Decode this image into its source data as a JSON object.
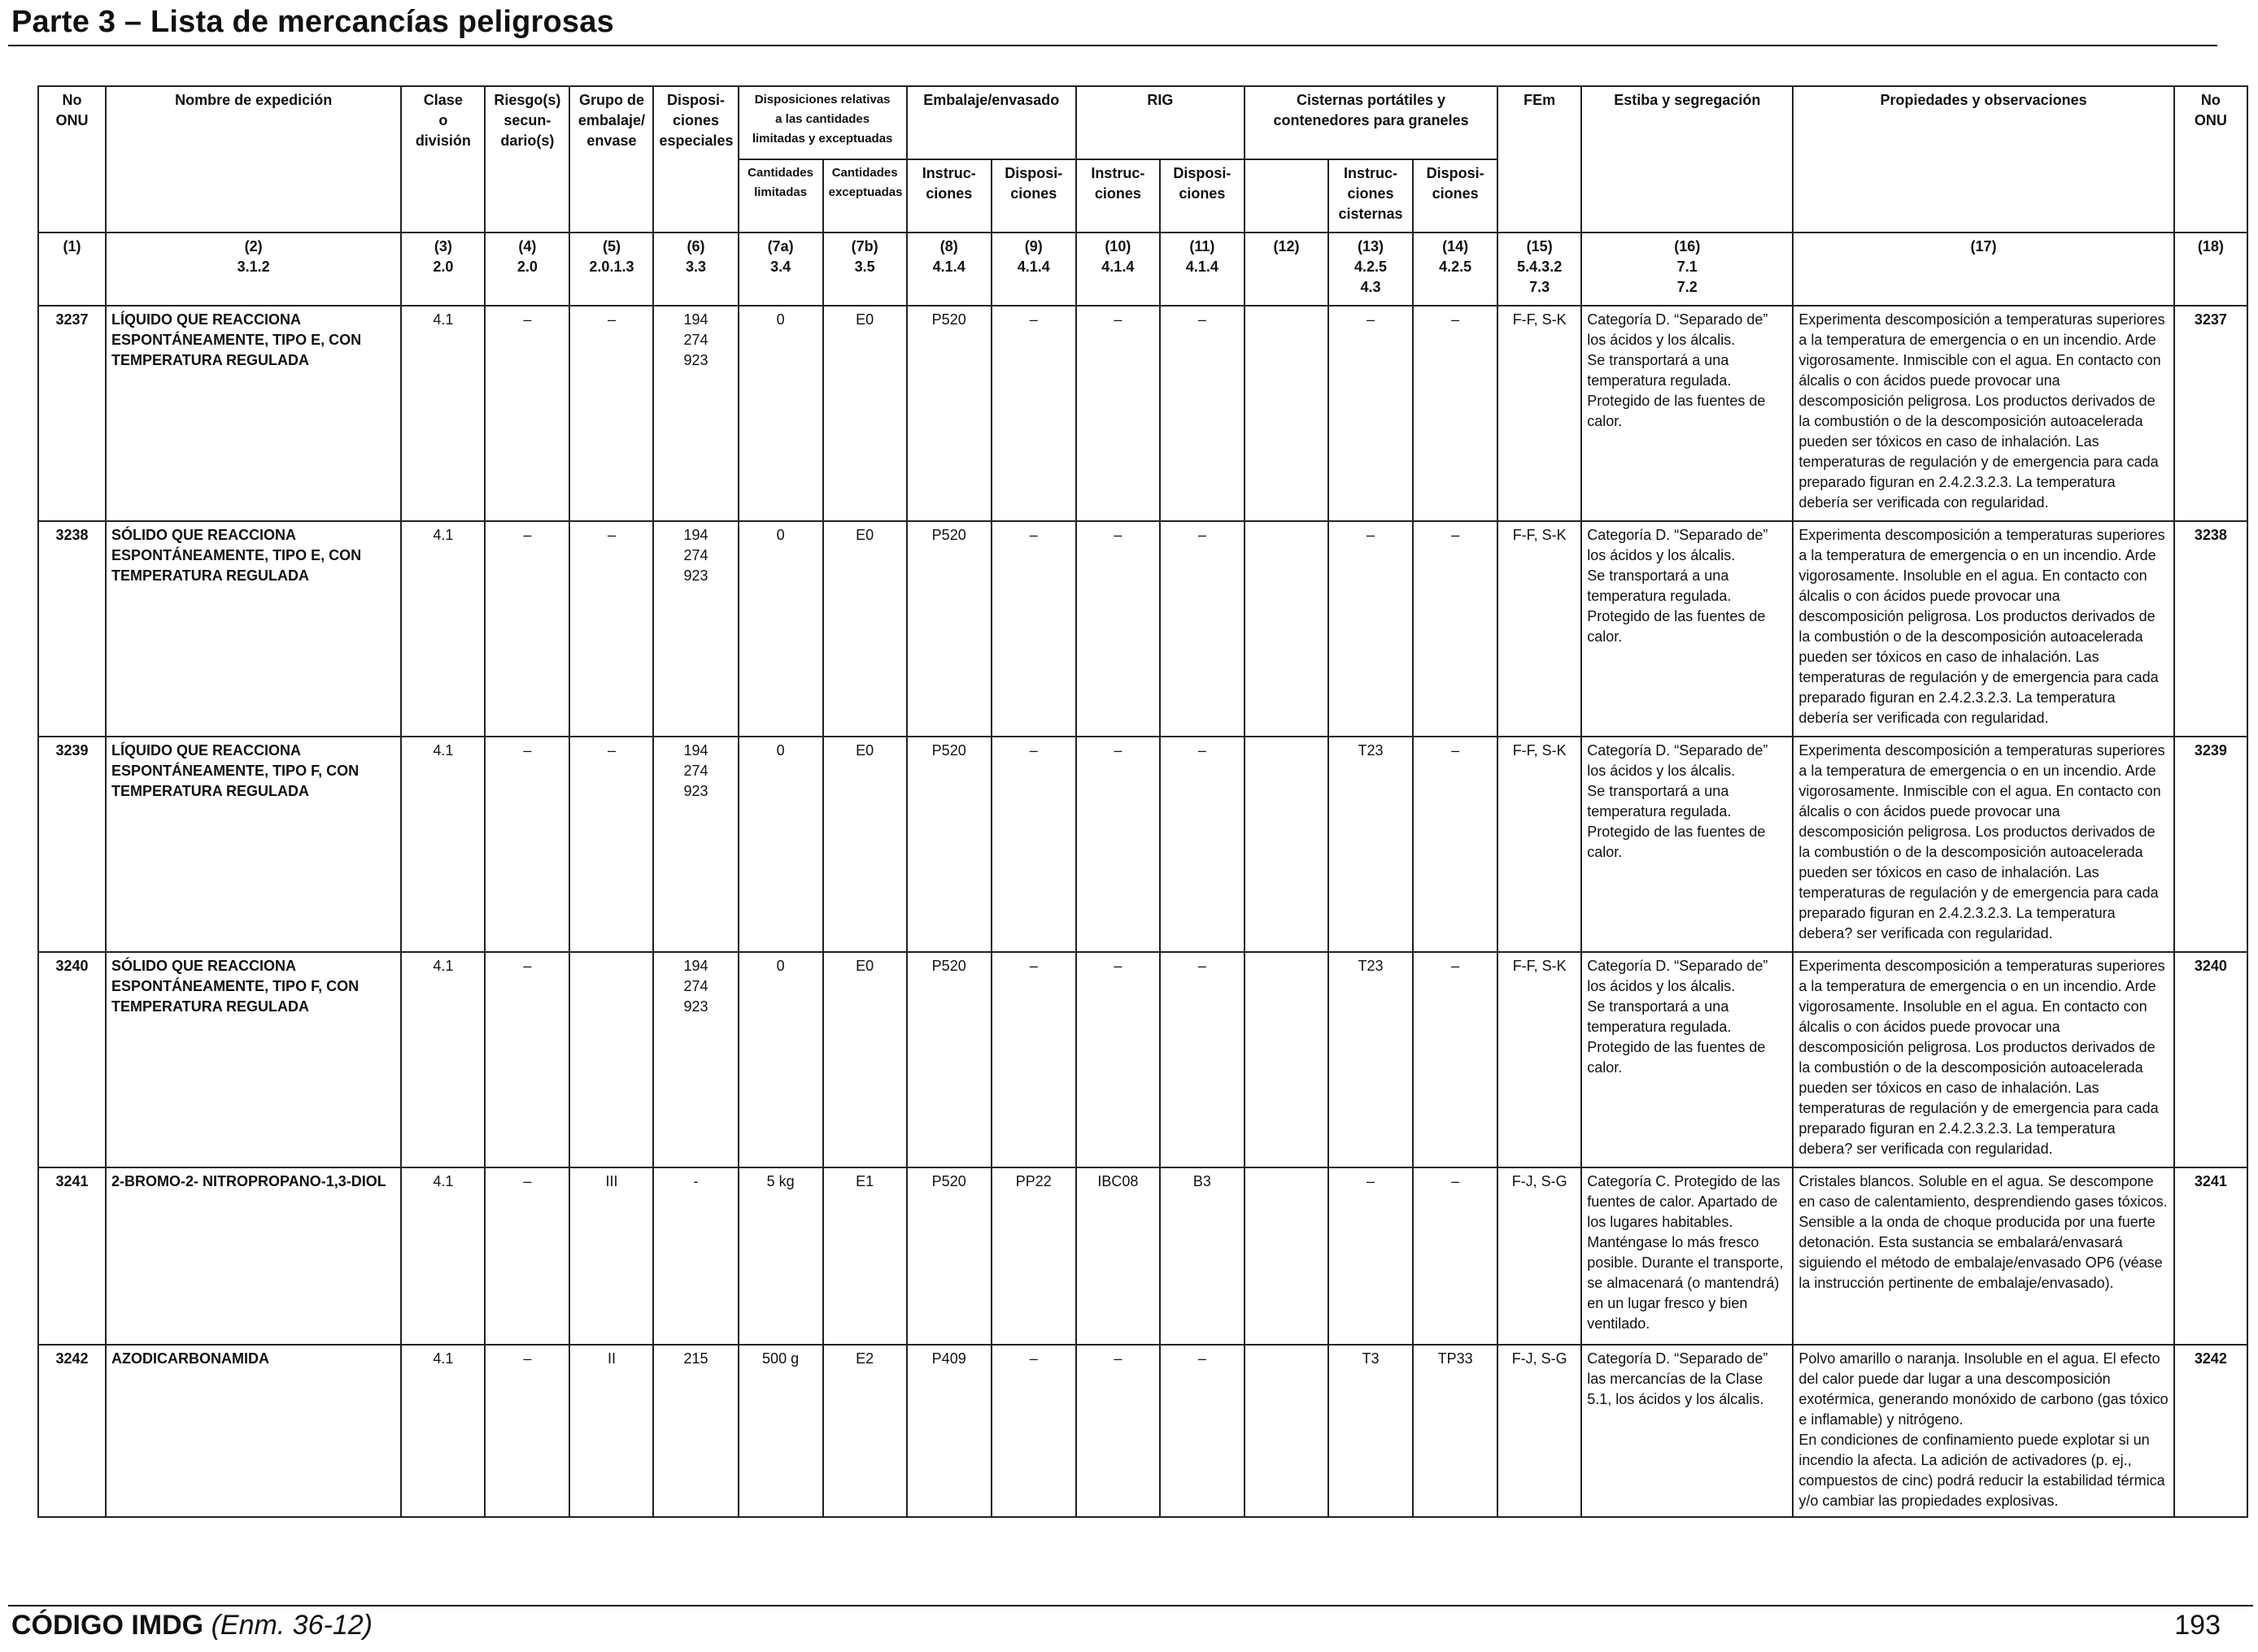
{
  "page_title": "Parte 3 – Lista de mercancías peligrosas",
  "headers": {
    "no_onu": "No\nONU",
    "nombre": "Nombre de expedición",
    "clase": "Clase\no\ndivisión",
    "riesgo": "Riesgo(s)\nsecun-\ndario(s)",
    "grupo": "Grupo de\nembalaje/\nenvase",
    "disposiciones_especiales": "Disposi-\nciones\nespeciales",
    "disposiciones_relativas": "Disposiciones relativas\na las cantidades\nlimitadas y exceptuadas",
    "cantidades_limitadas": "Cantidades\nlimitadas",
    "cantidades_exceptuadas": "Cantidades\nexceptuadas",
    "embalaje": "Embalaje/envasado",
    "emb_instrucciones": "Instruc-\nciones",
    "emb_disposiciones": "Disposi-\nciones",
    "rig": "RIG",
    "rig_instrucciones": "Instruc-\nciones",
    "rig_disposiciones": "Disposi-\nciones",
    "cisternas": "Cisternas portátiles y\ncontenedores para graneles",
    "cis_instrucciones": "Instruc-\nciones\ncisternas",
    "cis_disposiciones": "Disposi-\nciones",
    "fem": "FEm",
    "estiba": "Estiba y segregación",
    "propiedades": "Propiedades y observaciones",
    "no_onu_right": "No\nONU"
  },
  "column_refs": [
    "(1)",
    "(2)\n3.1.2",
    "(3)\n2.0",
    "(4)\n2.0",
    "(5)\n2.0.1.3",
    "(6)\n3.3",
    "(7a)\n3.4",
    "(7b)\n3.5",
    "(8)\n4.1.4",
    "(9)\n4.1.4",
    "(10)\n4.1.4",
    "(11)\n4.1.4",
    "(12)",
    "(13)\n4.2.5\n4.3",
    "(14)\n4.2.5",
    "(15)\n5.4.3.2\n7.3",
    "(16)\n7.1\n7.2",
    "(17)",
    "(18)"
  ],
  "rows": [
    {
      "no_onu": "3237",
      "nombre": "LÍQUIDO QUE REACCIONA ESPONTÁNEAMENTE, TIPO E, CON TEMPERATURA REGULADA",
      "clase": "4.1",
      "riesgo": "–",
      "grupo": "–",
      "disp_especiales": "194\n274\n923",
      "cant_limitadas": "0",
      "cant_exceptuadas": "E0",
      "emb_instr": "P520",
      "emb_disp": "–",
      "rig_instr": "–",
      "rig_disp": "–",
      "col12": "",
      "cis_instr": "–",
      "cis_disp": "–",
      "fem": "F-F, S-K",
      "estiba": "Categoría D. “Separado de” los ácidos y los álcalis.\nSe transportará a una temperatura regulada.\nProtegido de las fuentes de calor.",
      "propiedades": "Experimenta descomposición a temperaturas superiores a la temperatura de emergencia o en un incendio. Arde vigorosamente. Inmiscible con el agua. En contacto con álcalis o con ácidos puede provocar una descomposición peligrosa. Los productos derivados de la combustión o de la descomposición autoacelerada pueden ser tóxicos en caso de inhalación. Las temperaturas de regulación y de emergencia para cada preparado figuran en 2.4.2.3.2.3. La temperatura debería ser verificada con regularidad.",
      "no_onu_right": "3237"
    },
    {
      "no_onu": "3238",
      "nombre": "SÓLIDO QUE REACCIONA ESPONTÁNEAMENTE, TIPO E, CON TEMPERATURA REGULADA",
      "clase": "4.1",
      "riesgo": "–",
      "grupo": "–",
      "disp_especiales": "194\n274\n923",
      "cant_limitadas": "0",
      "cant_exceptuadas": "E0",
      "emb_instr": "P520",
      "emb_disp": "–",
      "rig_instr": "–",
      "rig_disp": "–",
      "col12": "",
      "cis_instr": "–",
      "cis_disp": "–",
      "fem": "F-F, S-K",
      "estiba": "Categoría D. “Separado de” los ácidos y los álcalis.\nSe transportará a una temperatura regulada.\nProtegido de las fuentes de calor.",
      "propiedades": "Experimenta descomposición a temperaturas superiores a la temperatura de emergencia o en un incendio. Arde vigorosamente. Insoluble en el agua. En contacto con álcalis o con ácidos puede provocar una descomposición peligrosa. Los productos derivados de la combustión o de la descomposición autoacelerada pueden ser tóxicos en caso de inhalación. Las temperaturas de regulación y de emergencia para cada preparado figuran en 2.4.2.3.2.3. La temperatura debería ser verificada con regularidad.",
      "no_onu_right": "3238"
    },
    {
      "no_onu": "3239",
      "nombre": "LÍQUIDO QUE REACCIONA ESPONTÁNEAMENTE, TIPO F, CON TEMPERATURA REGULADA",
      "clase": "4.1",
      "riesgo": "–",
      "grupo": "–",
      "disp_especiales": "194\n274\n923",
      "cant_limitadas": "0",
      "cant_exceptuadas": "E0",
      "emb_instr": "P520",
      "emb_disp": "–",
      "rig_instr": "–",
      "rig_disp": "–",
      "col12": "",
      "cis_instr": "T23",
      "cis_disp": "–",
      "fem": "F-F, S-K",
      "estiba": "Categoría D. “Separado de” los ácidos y los álcalis.\nSe transportará a una temperatura regulada.\nProtegido de las fuentes de calor.",
      "propiedades": "Experimenta descomposición a temperaturas superiores a la temperatura de emergencia o en un incendio. Arde vigorosamente. Inmiscible con el agua. En contacto con álcalis o con ácidos puede provocar una descomposición peligrosa. Los productos derivados de la combustión o de la descomposición autoacelerada pueden ser tóxicos en caso de inhalación. Las temperaturas de regulación y de emergencia para cada preparado figuran en 2.4.2.3.2.3. La temperatura debera? ser verificada con regularidad.",
      "no_onu_right": "3239"
    },
    {
      "no_onu": "3240",
      "nombre": "SÓLIDO QUE REACCIONA ESPONTÁNEAMENTE, TIPO F, CON TEMPERATURA REGULADA",
      "clase": "4.1",
      "riesgo": "–",
      "grupo": "",
      "disp_especiales": "194\n274\n923",
      "cant_limitadas": "0",
      "cant_exceptuadas": "E0",
      "emb_instr": "P520",
      "emb_disp": "–",
      "rig_instr": "–",
      "rig_disp": "–",
      "col12": "",
      "cis_instr": "T23",
      "cis_disp": "–",
      "fem": "F-F, S-K",
      "estiba": "Categoría D. “Separado de” los ácidos y los álcalis.\nSe transportará a una temperatura regulada.\nProtegido de las fuentes de calor.",
      "propiedades": "Experimenta descomposición a temperaturas superiores a la temperatura de emergencia o en un incendio. Arde vigorosamente. Insoluble en el agua. En contacto con álcalis o con ácidos puede provocar una descomposición peligrosa. Los productos derivados de la combustión o de la descomposición autoacelerada pueden ser tóxicos en caso de inhalación. Las temperaturas de regulación y de emergencia para cada preparado figuran en 2.4.2.3.2.3. La temperatura debera? ser verificada con regularidad.",
      "no_onu_right": "3240"
    },
    {
      "no_onu": "3241",
      "nombre": "2-BROMO-2- NITROPROPANO-1,3-DIOL",
      "clase": "4.1",
      "riesgo": "–",
      "grupo": "III",
      "disp_especiales": "-",
      "cant_limitadas": "5 kg",
      "cant_exceptuadas": "E1",
      "emb_instr": "P520",
      "emb_disp": "PP22",
      "rig_instr": "IBC08",
      "rig_disp": "B3",
      "col12": "",
      "cis_instr": "–",
      "cis_disp": "–",
      "fem": "F-J, S-G",
      "estiba": "Categoría C. Protegido de las fuentes de calor. Apartado de los lugares habitables. Manténgase lo más fresco posible. Durante el transporte, se almacenará (o mantendrá) en un lugar fresco y bien ventilado.",
      "propiedades": "Cristales blancos. Soluble en el agua. Se descompone en caso de calentamiento, desprendiendo gases tóxicos. Sensible a la onda de choque producida por una fuerte detonación. Esta sustancia se embalará/envasará siguiendo el método de embalaje/envasado OP6 (véase la instrucción pertinente de embalaje/envasado).",
      "no_onu_right": "3241"
    },
    {
      "no_onu": "3242",
      "nombre": "AZODICARBONAMIDA",
      "clase": "4.1",
      "riesgo": "–",
      "grupo": "II",
      "disp_especiales": "215",
      "cant_limitadas": "500 g",
      "cant_exceptuadas": "E2",
      "emb_instr": "P409",
      "emb_disp": "–",
      "rig_instr": "–",
      "rig_disp": "–",
      "col12": "",
      "cis_instr": "T3",
      "cis_disp": "TP33",
      "fem": "F-J, S-G",
      "estiba": "Categoría D. “Separado de” las mercancías de la Clase 5.1, los ácidos y los álcalis.",
      "propiedades": "Polvo amarillo o naranja. Insoluble en el agua. El efecto del calor puede dar lugar a una descomposición exotérmica, generando monóxido de carbono (gas tóxico e inflamable) y nitrógeno.\nEn condiciones de confinamiento puede explotar si un incendio la afecta. La adición de activadores (p. ej., compuestos de cinc) podrá reducir la estabilidad térmica y/o cambiar las propiedades explosivas.",
      "no_onu_right": "3242"
    }
  ],
  "footer": {
    "code": "CÓDIGO IMDG",
    "amendment": "(Enm. 36-12)",
    "page_number": "193"
  }
}
